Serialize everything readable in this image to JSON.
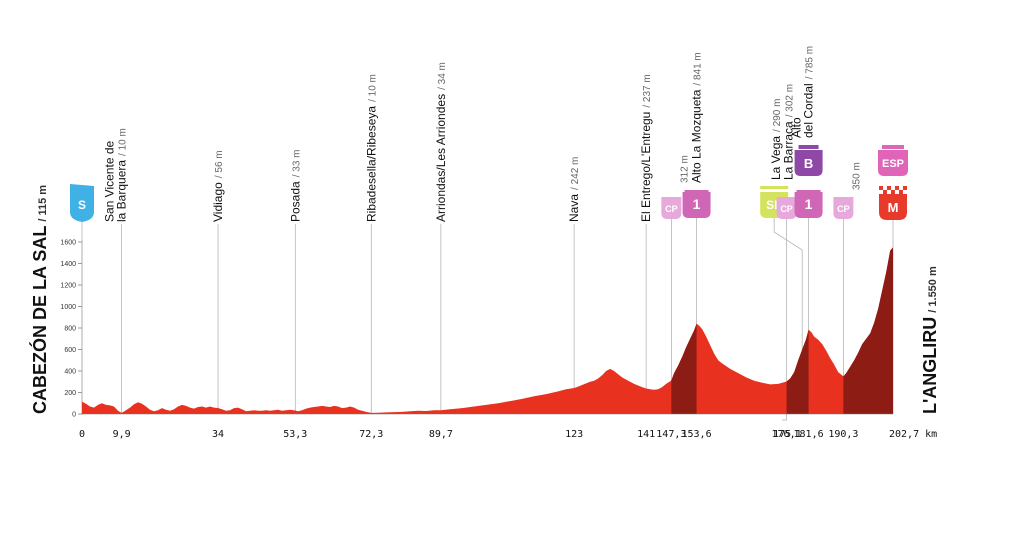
{
  "chart_data": {
    "type": "area",
    "xlabel": "",
    "ylabel": "",
    "x_unit": "km",
    "ylim": [
      0,
      1600
    ],
    "xlim": [
      0,
      202.7
    ],
    "yticks": [
      0,
      200,
      400,
      600,
      800,
      1000,
      1200,
      1400,
      1600
    ],
    "xticks": [
      {
        "km": 0,
        "label": "0"
      },
      {
        "km": 9.9,
        "label": "9,9"
      },
      {
        "km": 34,
        "label": "34"
      },
      {
        "km": 53.3,
        "label": "53,3"
      },
      {
        "km": 72.3,
        "label": "72,3"
      },
      {
        "km": 89.7,
        "label": "89,7"
      },
      {
        "km": 123,
        "label": "123"
      },
      {
        "km": 141,
        "label": "141"
      },
      {
        "km": 147.3,
        "label": "147,3"
      },
      {
        "km": 153.6,
        "label": "153,6"
      },
      {
        "km": 175,
        "label": "175"
      },
      {
        "km": 176.1,
        "label": "176,1"
      },
      {
        "km": 181.6,
        "label": "181,6"
      },
      {
        "km": 190.3,
        "label": "190,3"
      },
      {
        "km": 202.7,
        "label": "202,7 km"
      }
    ],
    "start": {
      "name": "CABEZÓN DE LA SAL",
      "altitude": "/ 115 m",
      "km": 0,
      "badge": "S"
    },
    "finish": {
      "name": "L'ANGLIRU",
      "altitude": "/ 1.550 m",
      "km": 202.7
    },
    "waypoints": [
      {
        "km": 9.9,
        "lines": [
          "San Vicente de",
          "la Barquera"
        ],
        "altitude": "/ 10 m"
      },
      {
        "km": 34,
        "lines": [
          "Vidiago"
        ],
        "altitude": "/ 56 m"
      },
      {
        "km": 53.3,
        "lines": [
          "Posada"
        ],
        "altitude": "/ 33 m"
      },
      {
        "km": 72.3,
        "lines": [
          "Ribadesella/Ribeseya"
        ],
        "altitude": "/ 10 m"
      },
      {
        "km": 89.7,
        "lines": [
          "Arriondas/Les Arriondes"
        ],
        "altitude": "/ 34 m"
      },
      {
        "km": 123,
        "lines": [
          "Nava"
        ],
        "altitude": "/ 242 m"
      },
      {
        "km": 141,
        "lines": [
          "El Entrego/L'Entregu"
        ],
        "altitude": "/ 237 m"
      },
      {
        "km": 147.3,
        "lines": [
          ""
        ],
        "altitude": "312 m",
        "badge": "CP"
      },
      {
        "km": 153.6,
        "lines": [
          "Alto La Mozqueta"
        ],
        "altitude": "/ 841 m",
        "badge": "1"
      },
      {
        "km": 175,
        "lines": [
          "La Vega"
        ],
        "altitude": "/ 290 m",
        "badge": "SP"
      },
      {
        "km": 176.1,
        "lines": [
          "La Barraca"
        ],
        "altitude": "/ 302 m",
        "badge": "CP"
      },
      {
        "km": 181.6,
        "lines": [
          "Alto",
          "del Cordal"
        ],
        "altitude": "/ 785 m",
        "badge": "1",
        "bonus": "B"
      },
      {
        "km": 190.3,
        "lines": [
          ""
        ],
        "altitude": "350 m",
        "badge": "CP"
      },
      {
        "km": 202.7,
        "lines": [
          ""
        ],
        "altitude": "",
        "badge": "M",
        "bonus": "ESP"
      }
    ],
    "steep_segments": [
      [
        147.3,
        153.6
      ],
      [
        176.1,
        181.6
      ],
      [
        190.3,
        202.7
      ]
    ],
    "profile": [
      [
        0,
        115
      ],
      [
        1,
        95
      ],
      [
        2,
        70
      ],
      [
        3,
        60
      ],
      [
        4,
        85
      ],
      [
        5,
        100
      ],
      [
        6,
        85
      ],
      [
        7,
        80
      ],
      [
        8,
        70
      ],
      [
        9,
        30
      ],
      [
        9.9,
        10
      ],
      [
        11,
        35
      ],
      [
        12,
        60
      ],
      [
        13,
        90
      ],
      [
        14,
        110
      ],
      [
        15,
        95
      ],
      [
        16,
        70
      ],
      [
        17,
        40
      ],
      [
        18,
        25
      ],
      [
        19,
        35
      ],
      [
        20,
        55
      ],
      [
        21,
        40
      ],
      [
        22,
        30
      ],
      [
        23,
        45
      ],
      [
        24,
        70
      ],
      [
        25,
        85
      ],
      [
        26,
        75
      ],
      [
        27,
        60
      ],
      [
        28,
        50
      ],
      [
        29,
        65
      ],
      [
        30,
        70
      ],
      [
        31,
        60
      ],
      [
        32,
        70
      ],
      [
        33,
        60
      ],
      [
        34,
        56
      ],
      [
        35,
        45
      ],
      [
        36,
        30
      ],
      [
        37,
        35
      ],
      [
        38,
        55
      ],
      [
        39,
        60
      ],
      [
        40,
        45
      ],
      [
        41,
        25
      ],
      [
        42,
        30
      ],
      [
        43,
        35
      ],
      [
        44,
        30
      ],
      [
        45,
        30
      ],
      [
        46,
        35
      ],
      [
        47,
        30
      ],
      [
        48,
        35
      ],
      [
        49,
        40
      ],
      [
        50,
        30
      ],
      [
        51,
        35
      ],
      [
        52,
        40
      ],
      [
        53.3,
        33
      ],
      [
        54,
        25
      ],
      [
        55,
        35
      ],
      [
        56,
        50
      ],
      [
        57,
        60
      ],
      [
        58,
        65
      ],
      [
        59,
        70
      ],
      [
        60,
        75
      ],
      [
        61,
        70
      ],
      [
        62,
        65
      ],
      [
        63,
        75
      ],
      [
        64,
        70
      ],
      [
        65,
        55
      ],
      [
        66,
        60
      ],
      [
        67,
        70
      ],
      [
        68,
        60
      ],
      [
        69,
        40
      ],
      [
        70,
        30
      ],
      [
        71,
        20
      ],
      [
        72.3,
        10
      ],
      [
        74,
        12
      ],
      [
        76,
        15
      ],
      [
        78,
        18
      ],
      [
        80,
        20
      ],
      [
        82,
        25
      ],
      [
        84,
        30
      ],
      [
        86,
        28
      ],
      [
        88,
        35
      ],
      [
        89.7,
        34
      ],
      [
        92,
        45
      ],
      [
        95,
        55
      ],
      [
        98,
        70
      ],
      [
        101,
        85
      ],
      [
        104,
        100
      ],
      [
        107,
        120
      ],
      [
        110,
        140
      ],
      [
        113,
        165
      ],
      [
        116,
        185
      ],
      [
        119,
        210
      ],
      [
        121,
        230
      ],
      [
        123,
        242
      ],
      [
        124,
        255
      ],
      [
        125,
        270
      ],
      [
        126,
        285
      ],
      [
        127,
        300
      ],
      [
        128,
        310
      ],
      [
        129,
        330
      ],
      [
        130,
        360
      ],
      [
        131,
        400
      ],
      [
        132,
        420
      ],
      [
        133,
        400
      ],
      [
        134,
        370
      ],
      [
        135,
        340
      ],
      [
        136,
        320
      ],
      [
        137,
        300
      ],
      [
        138,
        280
      ],
      [
        139,
        265
      ],
      [
        140,
        250
      ],
      [
        141,
        237
      ],
      [
        142,
        230
      ],
      [
        143,
        225
      ],
      [
        144,
        230
      ],
      [
        145,
        250
      ],
      [
        146,
        280
      ],
      [
        147.3,
        312
      ],
      [
        148,
        380
      ],
      [
        149,
        450
      ],
      [
        150,
        530
      ],
      [
        151,
        620
      ],
      [
        152,
        700
      ],
      [
        153,
        780
      ],
      [
        153.6,
        841
      ],
      [
        154.3,
        820
      ],
      [
        155,
        790
      ],
      [
        156,
        720
      ],
      [
        157,
        640
      ],
      [
        158,
        560
      ],
      [
        159,
        500
      ],
      [
        160,
        470
      ],
      [
        162,
        420
      ],
      [
        164,
        380
      ],
      [
        166,
        340
      ],
      [
        168,
        310
      ],
      [
        170,
        290
      ],
      [
        172,
        275
      ],
      [
        174,
        280
      ],
      [
        175,
        290
      ],
      [
        176.1,
        302
      ],
      [
        177,
        330
      ],
      [
        178,
        390
      ],
      [
        179,
        500
      ],
      [
        180,
        600
      ],
      [
        181,
        700
      ],
      [
        181.6,
        785
      ],
      [
        182.3,
        760
      ],
      [
        183,
        720
      ],
      [
        184,
        690
      ],
      [
        185,
        650
      ],
      [
        186,
        590
      ],
      [
        187,
        520
      ],
      [
        188,
        460
      ],
      [
        189,
        390
      ],
      [
        190.3,
        350
      ],
      [
        191,
        380
      ],
      [
        192,
        440
      ],
      [
        193,
        500
      ],
      [
        194,
        570
      ],
      [
        195,
        650
      ],
      [
        196,
        700
      ],
      [
        197,
        750
      ],
      [
        198,
        850
      ],
      [
        199,
        980
      ],
      [
        200,
        1150
      ],
      [
        201,
        1320
      ],
      [
        202,
        1520
      ],
      [
        202.7,
        1550
      ]
    ],
    "colors": {
      "profile": "#e8321f",
      "steep": "#8d1c14",
      "start_badge": "#3fb1e5",
      "cp_badge": "#e7a8dc",
      "cat_badge": "#cf67b6",
      "sprint_badge": "#d4e35e",
      "bonus_badge": "#8e48a6",
      "finish_badge": "#e83a2b",
      "esp_badge": "#e064b8"
    }
  }
}
